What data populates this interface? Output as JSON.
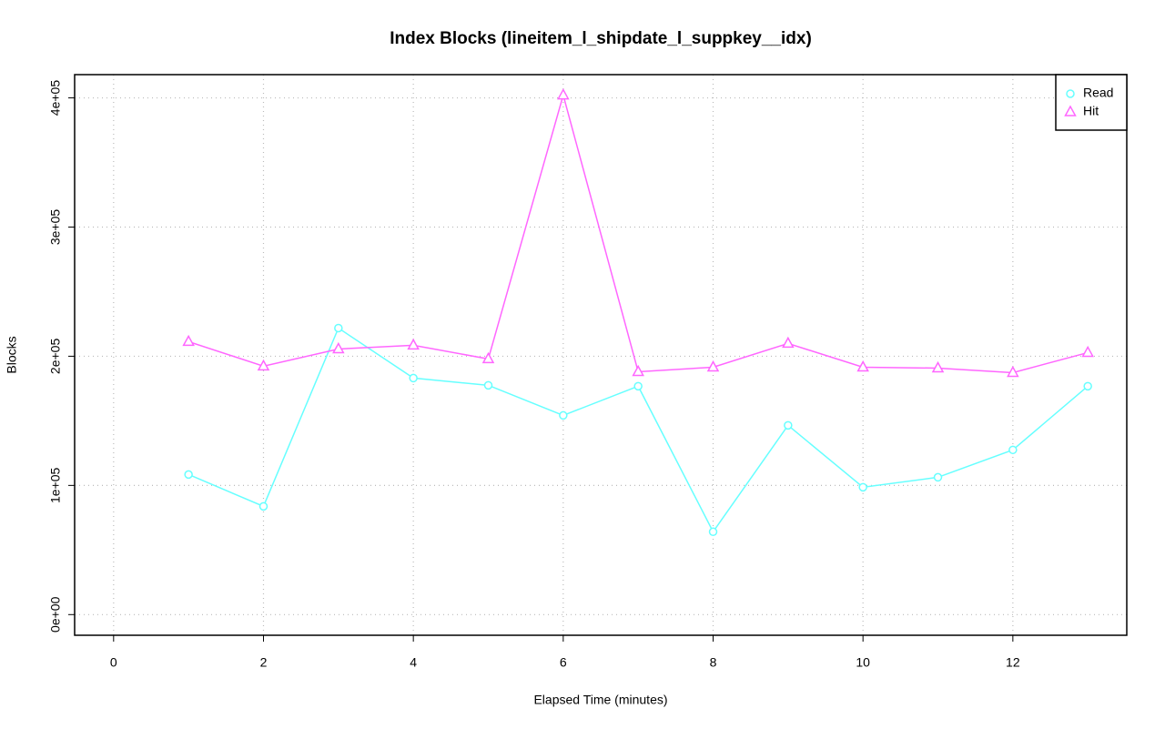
{
  "chart_data": {
    "type": "line",
    "title": "Index Blocks (lineitem_l_shipdate_l_suppkey__idx)",
    "x_label": "Elapsed Time (minutes)",
    "y_label": "Blocks",
    "x": [
      1,
      2,
      3,
      4,
      5,
      6,
      7,
      8,
      9,
      10,
      11,
      12,
      13
    ],
    "series": [
      {
        "name": "Read",
        "color": "#66ffff",
        "marker": "circle",
        "values": [
          108450,
          83800,
          221800,
          183100,
          177500,
          154200,
          176800,
          64100,
          146500,
          98600,
          106300,
          127500,
          176800
        ]
      },
      {
        "name": "Hit",
        "color": "#ff66ff",
        "marker": "triangle",
        "values": [
          211300,
          192300,
          205600,
          208500,
          197900,
          402100,
          188000,
          191500,
          209900,
          191500,
          190800,
          187300,
          202800
        ]
      }
    ],
    "xlim": [
      -0.52,
      13.52
    ],
    "ylim": [
      -16000,
      418000
    ],
    "xticks": [
      0,
      2,
      4,
      6,
      8,
      10,
      12
    ],
    "yticks": [
      {
        "value": 0,
        "label": "0e+00"
      },
      {
        "value": 100000,
        "label": "1e+05"
      },
      {
        "value": 200000,
        "label": "2e+05"
      },
      {
        "value": 300000,
        "label": "3e+05"
      },
      {
        "value": 400000,
        "label": "4e+05"
      }
    ],
    "grid": true,
    "legend": "top-right"
  }
}
